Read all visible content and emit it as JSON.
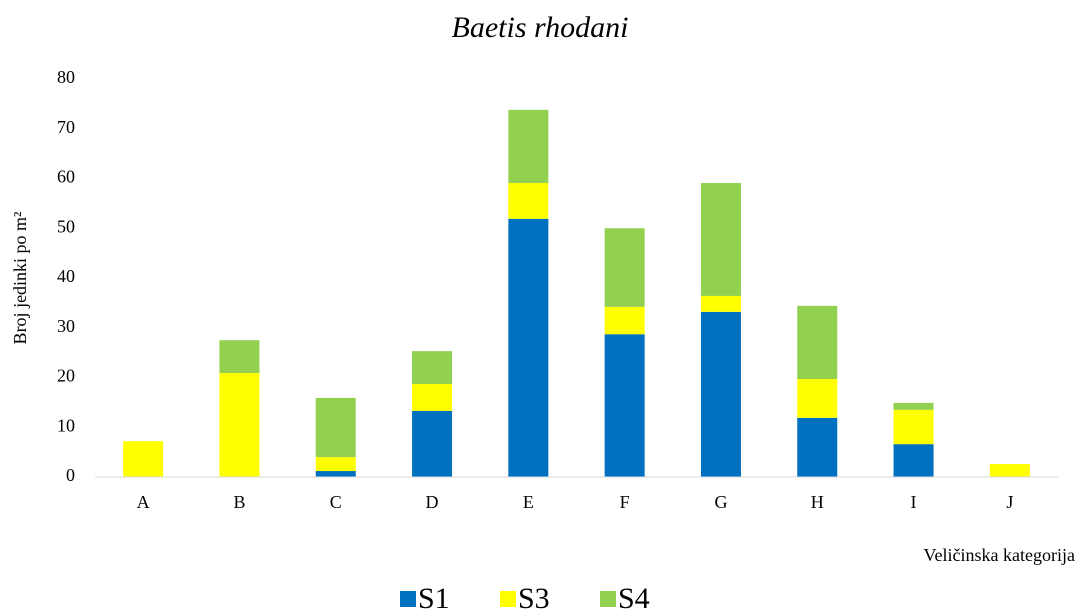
{
  "chart_data": {
    "type": "stacked_bar",
    "title": "Baetis rhodani",
    "x_label": "Veličinska kategorija",
    "y_label": "Broj jedinki po m²",
    "categories": [
      "A",
      "B",
      "C",
      "D",
      "E",
      "F",
      "G",
      "H",
      "I",
      "J"
    ],
    "series": [
      {
        "name": "S1",
        "color": "#0070c0",
        "values": [
          0,
          0,
          1.2,
          13.3,
          51.9,
          28.7,
          33.2,
          11.9,
          6.6,
          0
        ]
      },
      {
        "name": "S3",
        "color": "#ffff00",
        "values": [
          7.2,
          20.9,
          2.8,
          5.4,
          7.2,
          5.5,
          3.2,
          7.8,
          6.9,
          2.6
        ]
      },
      {
        "name": "S4",
        "color": "#92d050",
        "values": [
          0,
          6.6,
          11.9,
          6.6,
          14.7,
          15.8,
          22.7,
          14.7,
          1.4,
          0
        ]
      }
    ],
    "ylim": [
      0,
      80
    ],
    "yticks": [
      0,
      10,
      20,
      30,
      40,
      50,
      60,
      70,
      80
    ],
    "grid": false,
    "legend": "bottom"
  }
}
